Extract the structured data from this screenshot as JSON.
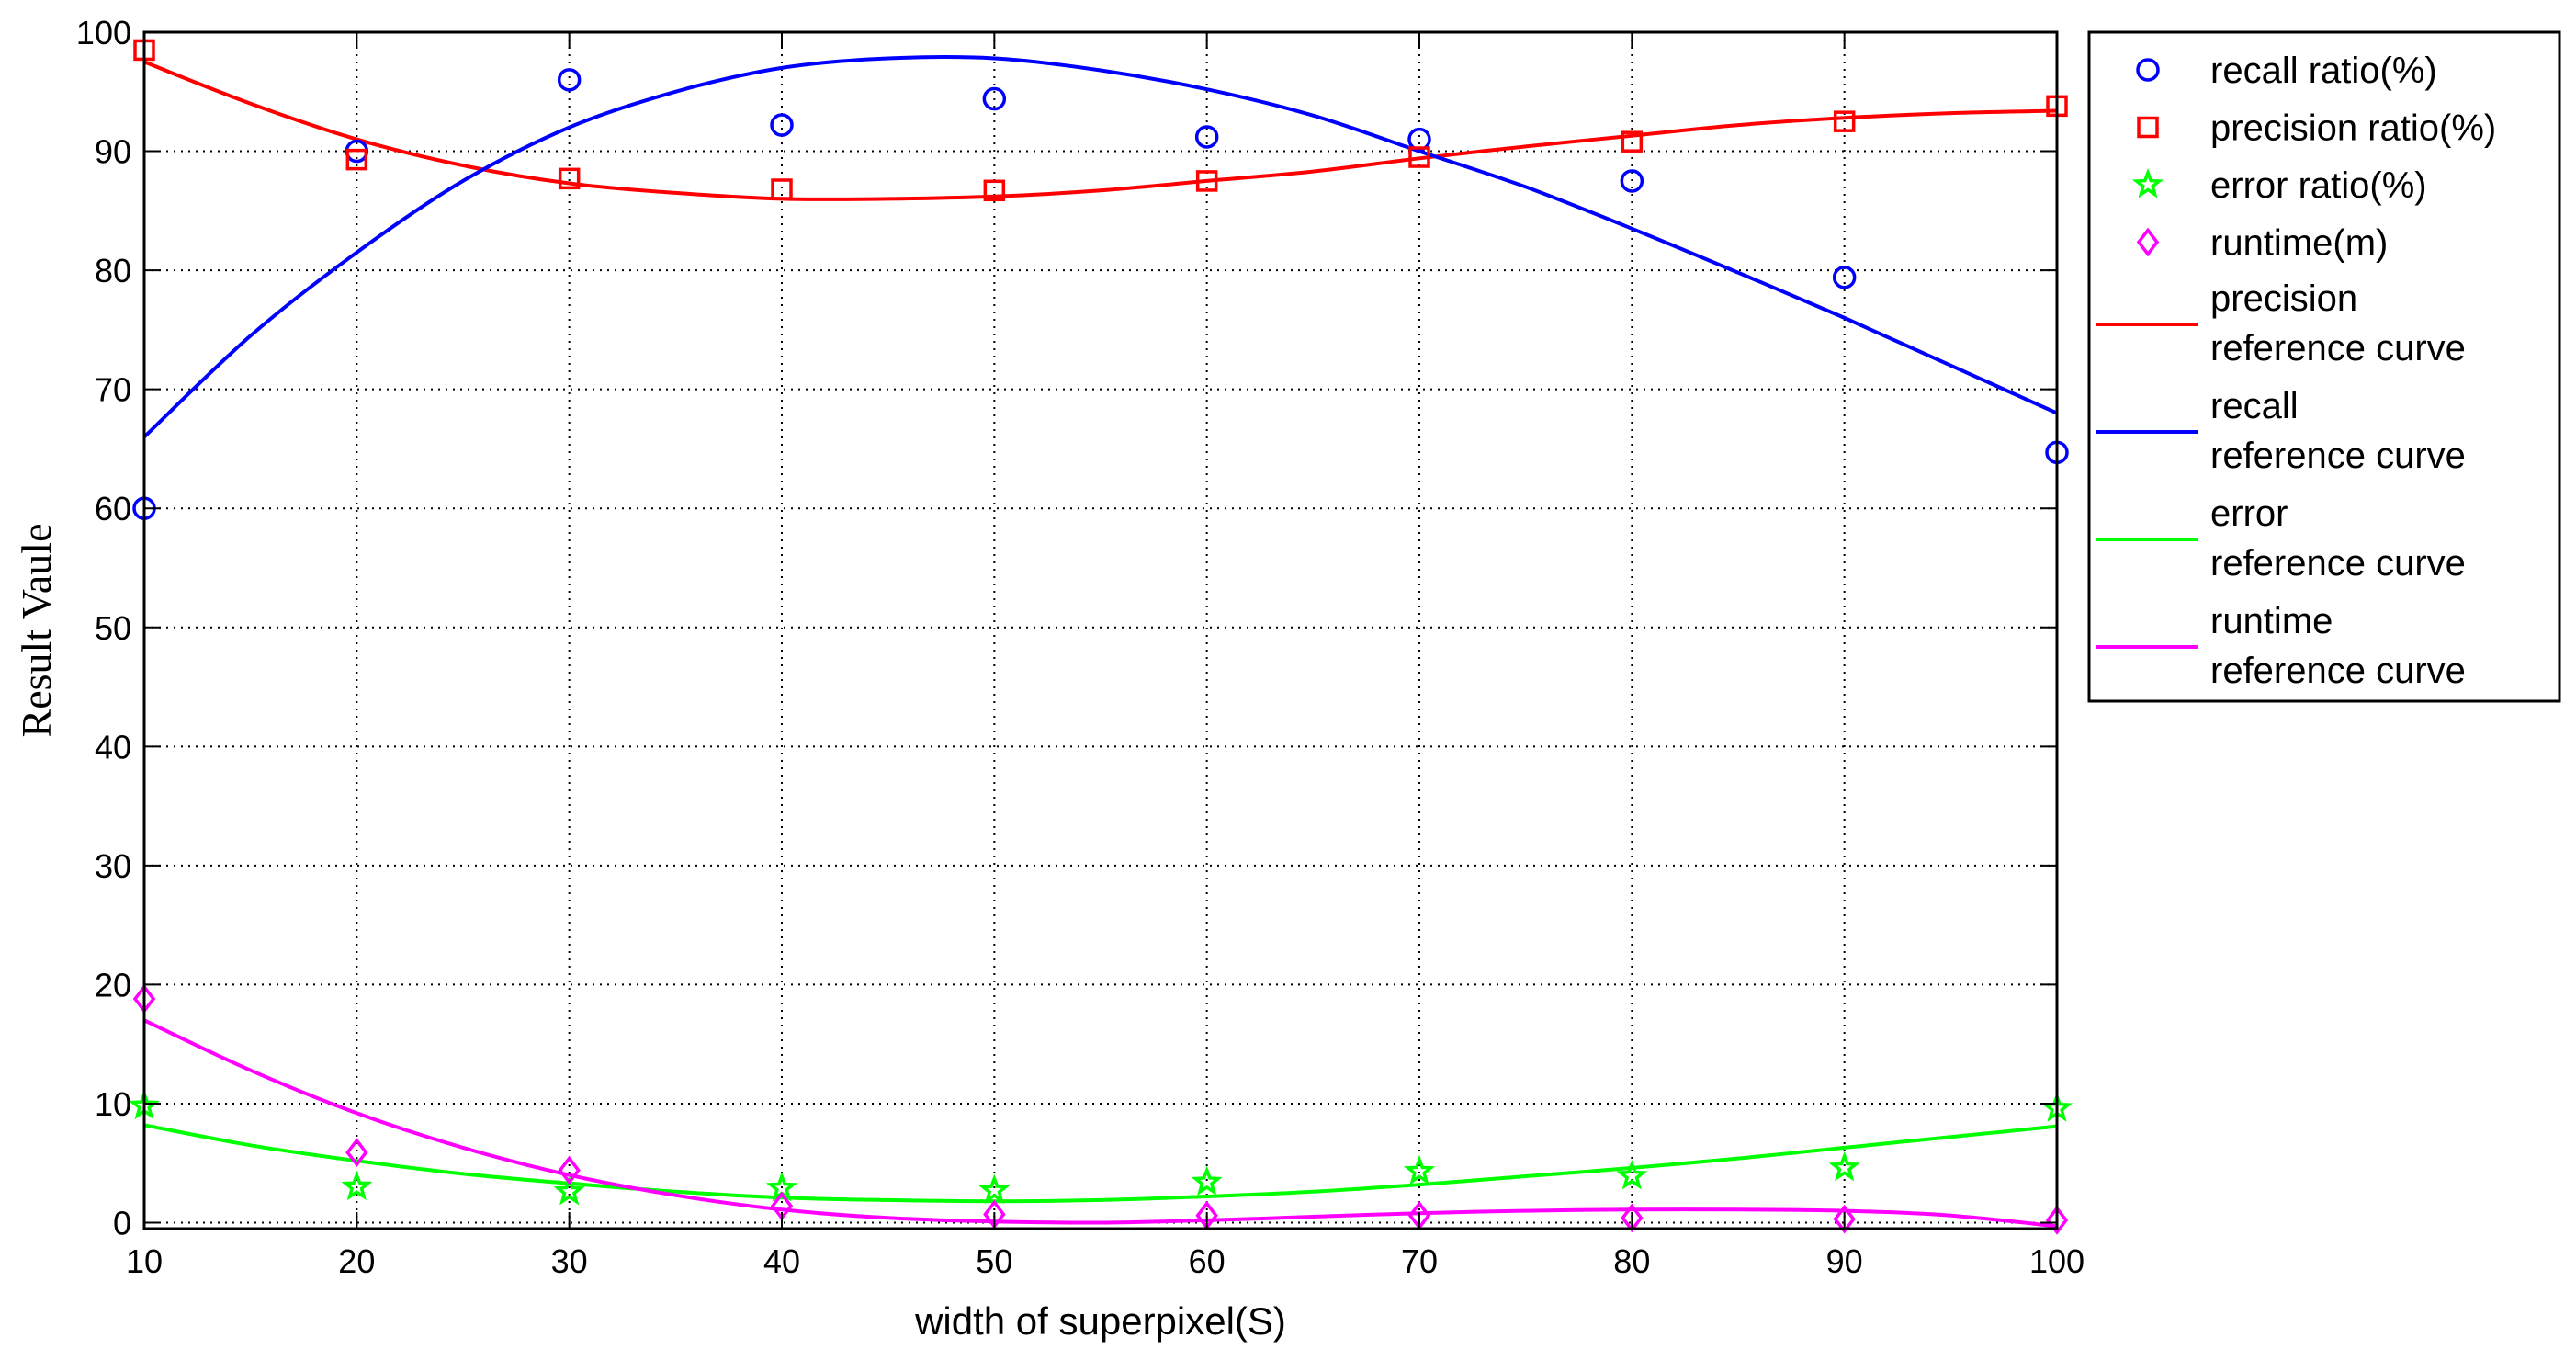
{
  "chart_data": {
    "type": "line",
    "xlabel": "width of superpixel(S)",
    "ylabel": "Result Vaule",
    "xlim": [
      10,
      100
    ],
    "ylim": [
      -0.5,
      100
    ],
    "xticks": [
      10,
      20,
      30,
      40,
      50,
      60,
      70,
      80,
      90,
      100
    ],
    "yticks": [
      0,
      10,
      20,
      30,
      40,
      50,
      60,
      70,
      80,
      90,
      100
    ],
    "grid": "dotted",
    "legend_position": "outside-right-top",
    "x": [
      10,
      20,
      30,
      40,
      50,
      60,
      70,
      80,
      90,
      100
    ],
    "markers": [
      {
        "name": "recall ratio(%)",
        "marker": "circle",
        "color": "#0000ff",
        "values": [
          60.0,
          90.0,
          96.0,
          92.2,
          94.4,
          91.2,
          91.0,
          87.5,
          79.4,
          64.7
        ]
      },
      {
        "name": "precision ratio(%)",
        "marker": "square",
        "color": "#ff0000",
        "values": [
          98.5,
          89.3,
          87.7,
          86.8,
          86.7,
          87.5,
          89.5,
          90.8,
          92.5,
          93.8
        ]
      },
      {
        "name": "error ratio(%)",
        "marker": "star",
        "color": "#00ff00",
        "values": [
          9.8,
          3.0,
          2.6,
          2.9,
          2.7,
          3.4,
          4.3,
          3.9,
          4.6,
          9.6
        ]
      },
      {
        "name": "runtime(m)",
        "marker": "diamond",
        "color": "#ff00ff",
        "values": [
          18.8,
          5.9,
          4.4,
          1.4,
          0.7,
          0.6,
          0.6,
          0.4,
          0.3,
          0.2
        ]
      }
    ],
    "curves": [
      {
        "label_line1": "precision",
        "label_line2": "reference curve",
        "color": "#ff0000",
        "x": [
          10,
          15,
          20,
          25,
          30,
          35,
          40,
          45,
          50,
          55,
          60,
          65,
          70,
          75,
          80,
          85,
          90,
          95,
          100
        ],
        "y": [
          97.5,
          94.0,
          91.0,
          88.8,
          87.3,
          86.5,
          86.0,
          86.0,
          86.2,
          86.7,
          87.5,
          88.3,
          89.4,
          90.4,
          91.3,
          92.2,
          92.8,
          93.2,
          93.4
        ]
      },
      {
        "label_line1": "recall",
        "label_line2": "reference curve",
        "color": "#0000ff",
        "x": [
          10,
          15,
          20,
          25,
          30,
          35,
          40,
          45,
          50,
          55,
          60,
          65,
          70,
          75,
          80,
          85,
          90,
          95,
          100
        ],
        "y": [
          66.0,
          74.5,
          81.5,
          87.5,
          92.0,
          95.0,
          97.0,
          97.8,
          97.8,
          96.8,
          95.2,
          93.0,
          90.0,
          87.0,
          83.5,
          79.8,
          76.0,
          72.0,
          68.0
        ]
      },
      {
        "label_line1": "error",
        "label_line2": "reference curve",
        "color": "#00ff00",
        "x": [
          10,
          15,
          20,
          25,
          30,
          35,
          40,
          45,
          50,
          55,
          60,
          65,
          70,
          75,
          80,
          85,
          90,
          95,
          100
        ],
        "y": [
          8.2,
          6.5,
          5.2,
          4.1,
          3.3,
          2.6,
          2.1,
          1.9,
          1.8,
          1.9,
          2.2,
          2.6,
          3.2,
          3.9,
          4.6,
          5.4,
          6.3,
          7.2,
          8.1
        ]
      },
      {
        "label_line1": "runtime",
        "label_line2": "reference curve",
        "color": "#ff00ff",
        "x": [
          10,
          15,
          20,
          25,
          30,
          35,
          40,
          45,
          50,
          55,
          60,
          65,
          70,
          75,
          80,
          85,
          90,
          95,
          100
        ],
        "y": [
          17.0,
          12.8,
          9.2,
          6.3,
          4.0,
          2.3,
          1.1,
          0.4,
          0.1,
          0.0,
          0.2,
          0.5,
          0.8,
          1.0,
          1.1,
          1.1,
          1.0,
          0.6,
          -0.3
        ]
      }
    ]
  }
}
